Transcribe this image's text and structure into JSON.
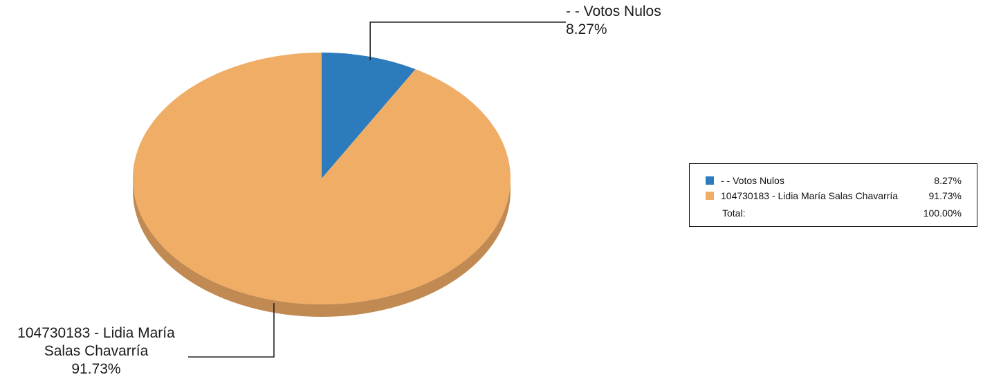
{
  "chart_data": {
    "type": "pie",
    "style": "3d",
    "slices": [
      {
        "label": "- - Votos Nulos",
        "value": 8.27,
        "pct_text": "8.27%",
        "color": "#2b7bbd"
      },
      {
        "label": "104730183 - Lidia María Salas Chavarría",
        "value": 91.73,
        "pct_text": "91.73%",
        "color": "#f0ad66"
      }
    ],
    "callouts": [
      {
        "lines": [
          "- - Votos Nulos",
          "8.27%"
        ]
      },
      {
        "lines": [
          "104730183 - Lidia María",
          "Salas Chavarría",
          "91.73%"
        ]
      }
    ],
    "legend": {
      "placement": "right",
      "rows": [
        {
          "label": "- - Votos Nulos",
          "value": "8.27%",
          "color": "#2b7bbd"
        },
        {
          "label": "104730183 - Lidia María Salas Chavarría",
          "value": "91.73%",
          "color": "#f0ad66"
        }
      ],
      "total_label": "Total:",
      "total_value": "100.00%"
    }
  }
}
